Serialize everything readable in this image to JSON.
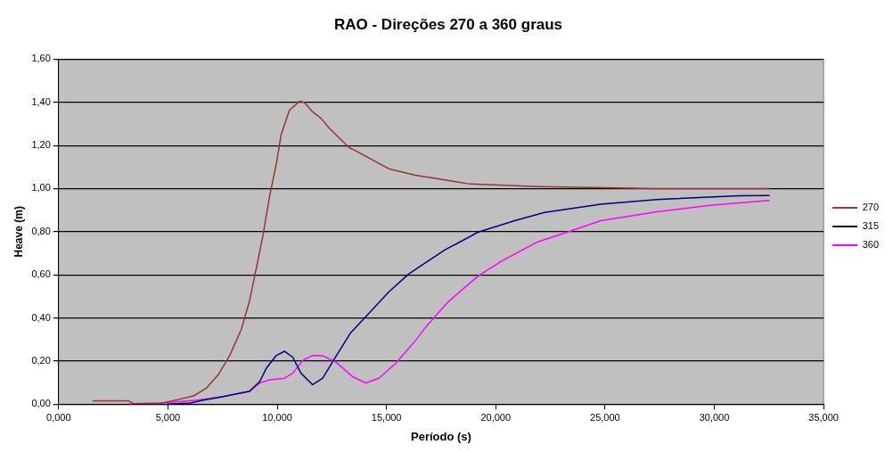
{
  "chart_data": {
    "type": "line",
    "title": "RAO - Direções 270 a 360 graus",
    "xlabel": "Período (s)",
    "ylabel": "Heave (m)",
    "xlim": [
      0,
      35
    ],
    "xticks": [
      {
        "value": 0,
        "label": "0,000"
      },
      {
        "value": 5,
        "label": "5,000"
      },
      {
        "value": 10,
        "label": "10,000"
      },
      {
        "value": 15,
        "label": "15,000"
      },
      {
        "value": 20,
        "label": "20,000"
      },
      {
        "value": 25,
        "label": "25,000"
      },
      {
        "value": 30,
        "label": "30,000"
      },
      {
        "value": 35,
        "label": "35,000"
      }
    ],
    "ylim": [
      0,
      1.6
    ],
    "yticks": [
      {
        "value": 0,
        "label": "0,00"
      },
      {
        "value": 0.2,
        "label": "0,20"
      },
      {
        "value": 0.4,
        "label": "0,40"
      },
      {
        "value": 0.6,
        "label": "0,60"
      },
      {
        "value": 0.8,
        "label": "0,80"
      },
      {
        "value": 1,
        "label": "1,00"
      },
      {
        "value": 1.2,
        "label": "1,20"
      },
      {
        "value": 1.4,
        "label": "1,40"
      },
      {
        "value": 1.6,
        "label": "1,60"
      }
    ],
    "grid": "y",
    "legend": "right",
    "marker": "none",
    "line_style": "solid",
    "series": [
      {
        "name": "270",
        "color": "#993333",
        "x": [
          1.55,
          3.21,
          3.4,
          4.64,
          5.41,
          6.17,
          6.77,
          7.3,
          7.83,
          8.36,
          8.74,
          9.05,
          9.35,
          9.65,
          9.96,
          10.18,
          10.56,
          11.02,
          11.24,
          11.62,
          12.0,
          12.38,
          13.29,
          13.59,
          15.1,
          16.32,
          17.23,
          18.82,
          21.92,
          27.38,
          32.53
        ],
        "values": [
          0.015,
          0.015,
          0.003,
          0.003,
          0.02,
          0.038,
          0.075,
          0.136,
          0.226,
          0.347,
          0.482,
          0.633,
          0.783,
          0.964,
          1.115,
          1.25,
          1.364,
          1.405,
          1.4,
          1.356,
          1.326,
          1.28,
          1.19,
          1.175,
          1.092,
          1.062,
          1.047,
          1.021,
          1.009,
          1.0,
          1.0
        ]
      },
      {
        "name": "315",
        "color": "#000080",
        "x": [
          4.95,
          6.01,
          6.62,
          7.53,
          8.74,
          9.2,
          9.5,
          9.96,
          10.33,
          10.71,
          11.09,
          11.62,
          12.08,
          12.53,
          13.36,
          14.2,
          15.1,
          16.01,
          16.77,
          17.68,
          19.2,
          20.86,
          22.23,
          24.8,
          27.38,
          31.17,
          32.53
        ],
        "values": [
          0,
          0.005,
          0.018,
          0.035,
          0.06,
          0.105,
          0.166,
          0.226,
          0.245,
          0.218,
          0.143,
          0.09,
          0.12,
          0.196,
          0.331,
          0.422,
          0.52,
          0.603,
          0.655,
          0.716,
          0.798,
          0.851,
          0.889,
          0.927,
          0.949,
          0.967,
          0.968
        ]
      },
      {
        "name": "360",
        "color": "#ff00ff",
        "x": [
          3.14,
          4.65,
          6.32,
          7.53,
          8.74,
          9.2,
          9.65,
          10.33,
          10.71,
          11.17,
          11.62,
          12.08,
          12.68,
          13.44,
          14.05,
          14.65,
          15.41,
          16.32,
          16.77,
          17.83,
          19.2,
          20.26,
          21.92,
          23.29,
          24.8,
          27.38,
          29.8,
          32.53
        ],
        "values": [
          0,
          0.005,
          0.018,
          0.035,
          0.06,
          0.098,
          0.113,
          0.12,
          0.143,
          0.203,
          0.226,
          0.224,
          0.196,
          0.128,
          0.098,
          0.12,
          0.188,
          0.294,
          0.354,
          0.475,
          0.595,
          0.663,
          0.753,
          0.798,
          0.851,
          0.892,
          0.922,
          0.945
        ]
      }
    ]
  }
}
